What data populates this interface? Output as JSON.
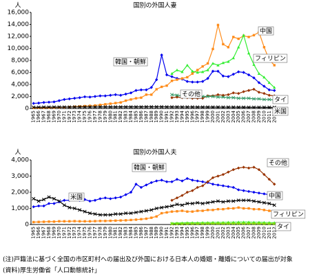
{
  "chart_data": [
    {
      "type": "line",
      "title": "国別の外国人妻",
      "y_unit": "人",
      "categories": [
        "1965",
        "1966",
        "1967",
        "1968",
        "1969",
        "1970",
        "1971",
        "1972",
        "1973",
        "1974",
        "1975",
        "1976",
        "1977",
        "1978",
        "1979",
        "1980",
        "1981",
        "1982",
        "1983",
        "1984",
        "1985",
        "1986",
        "1987",
        "1988",
        "1989",
        "1990",
        "1991",
        "1992",
        "1993",
        "1994",
        "1995",
        "1996",
        "1997",
        "1998",
        "1999",
        "2000",
        "2001",
        "2002",
        "2003",
        "2004",
        "2005",
        "2006",
        "2007",
        "2008",
        "2009",
        "2010",
        "2011",
        "2012"
      ],
      "ylim": [
        0,
        16000
      ],
      "yticks": [
        0,
        {
          "value": 2000,
          "label": "2,000"
        },
        {
          "value": 4000,
          "label": "4,000"
        },
        {
          "value": 6000,
          "label": "6,000"
        },
        {
          "value": 8000,
          "label": "8,000"
        },
        {
          "value": 10000,
          "label": "10,000"
        },
        {
          "value": 12000,
          "label": "12,000"
        },
        {
          "value": 14000,
          "label": "14,000"
        },
        {
          "value": 16000,
          "label": "16,000"
        }
      ],
      "grid": false,
      "series": [
        {
          "name": "韓国・朝鮮",
          "color": "#0000ee",
          "marker": "diamond",
          "values": [
            850,
            900,
            1000,
            1050,
            1100,
            1300,
            1500,
            1600,
            1700,
            1800,
            1950,
            1900,
            2000,
            2100,
            2100,
            2200,
            2300,
            2200,
            2400,
            2600,
            3000,
            3100,
            3100,
            3500,
            4800,
            8900,
            5600,
            5300,
            5000,
            4900,
            4500,
            4400,
            4400,
            4500,
            5000,
            6200,
            6200,
            5400,
            5300,
            5700,
            6100,
            6000,
            5600,
            5100,
            4300,
            3700,
            3100,
            3000
          ]
        },
        {
          "name": "中国",
          "color": "#ff8c1a",
          "marker": "square",
          "values": [
            100,
            110,
            120,
            130,
            150,
            180,
            200,
            250,
            300,
            350,
            400,
            450,
            500,
            600,
            700,
            800,
            900,
            1000,
            1300,
            1500,
            1700,
            1800,
            2300,
            2300,
            3200,
            3600,
            3800,
            4600,
            4800,
            5000,
            5200,
            5800,
            6400,
            7000,
            7500,
            9900,
            13900,
            10700,
            10200,
            11900,
            11600,
            12100,
            11900,
            12200,
            12700,
            10200,
            8100,
            7200
          ]
        },
        {
          "name": "フィリピン",
          "color": "#33ee33",
          "marker": "triangle",
          "values": [
            null,
            null,
            null,
            null,
            null,
            null,
            null,
            null,
            null,
            null,
            null,
            null,
            null,
            null,
            null,
            null,
            null,
            null,
            null,
            null,
            null,
            null,
            null,
            null,
            null,
            null,
            null,
            5800,
            6400,
            6100,
            7200,
            6200,
            6000,
            6100,
            6400,
            7500,
            7200,
            7600,
            7800,
            8400,
            10200,
            12200,
            9200,
            7300,
            5800,
            5200,
            4300,
            3500
          ]
        },
        {
          "name": "タイ",
          "color": "#993300",
          "marker": "diamond",
          "values": [
            null,
            null,
            null,
            null,
            null,
            null,
            null,
            null,
            null,
            null,
            null,
            null,
            null,
            null,
            null,
            null,
            null,
            null,
            null,
            null,
            null,
            null,
            null,
            null,
            null,
            null,
            null,
            1800,
            1900,
            1800,
            1800,
            1700,
            1700,
            1700,
            2100,
            2100,
            2300,
            2200,
            2300,
            2600,
            2500,
            2800,
            3000,
            3200,
            2700,
            2500,
            2200,
            2100
          ]
        },
        {
          "name": "その他",
          "color": "#339966",
          "marker": "x",
          "values": [
            null,
            null,
            null,
            null,
            null,
            null,
            null,
            null,
            null,
            null,
            null,
            null,
            null,
            null,
            null,
            null,
            null,
            null,
            null,
            null,
            null,
            null,
            null,
            null,
            null,
            null,
            null,
            2300,
            2200,
            2100,
            2000,
            2100,
            2000,
            2000,
            2000,
            2000,
            1900,
            1900,
            1800,
            1800,
            1700,
            1700,
            1700,
            1600,
            1600,
            1500,
            1500,
            1400
          ]
        },
        {
          "name": "米国",
          "color": "#000000",
          "marker": "x",
          "values": [
            200,
            200,
            220,
            220,
            230,
            230,
            240,
            240,
            250,
            250,
            250,
            250,
            250,
            260,
            260,
            260,
            260,
            270,
            270,
            270,
            270,
            270,
            280,
            280,
            280,
            280,
            270,
            260,
            260,
            250,
            250,
            250,
            240,
            240,
            240,
            230,
            230,
            220,
            220,
            220,
            210,
            210,
            200,
            200,
            200,
            190,
            190,
            180
          ]
        }
      ]
    },
    {
      "type": "line",
      "title": "国別の外国人夫",
      "y_unit": "人",
      "categories": [
        "1965",
        "1966",
        "1967",
        "1968",
        "1969",
        "1970",
        "1971",
        "1972",
        "1973",
        "1974",
        "1975",
        "1976",
        "1977",
        "1978",
        "1979",
        "1980",
        "1981",
        "1982",
        "1983",
        "1984",
        "1985",
        "1986",
        "1987",
        "1988",
        "1989",
        "1990",
        "1991",
        "1992",
        "1993",
        "1994",
        "1995",
        "1996",
        "1997",
        "1998",
        "1999",
        "2000",
        "2001",
        "2002",
        "2003",
        "2004",
        "2005",
        "2006",
        "2007",
        "2008",
        "2009",
        "2010",
        "2011",
        "2012"
      ],
      "ylim": [
        0,
        4000
      ],
      "yticks": [
        0,
        {
          "value": 1000,
          "label": "1,000"
        },
        {
          "value": 2000,
          "label": "2,000"
        },
        {
          "value": 3000,
          "label": "3,000"
        },
        {
          "value": 4000,
          "label": "4,000"
        }
      ],
      "grid": false,
      "series": [
        {
          "name": "韓国・朝鮮",
          "color": "#0000ee",
          "marker": "diamond",
          "values": [
            1100,
            1150,
            1150,
            1300,
            1300,
            1400,
            1500,
            1500,
            1550,
            1500,
            1550,
            1450,
            1500,
            1600,
            1650,
            1600,
            1650,
            1700,
            1850,
            2000,
            2500,
            2300,
            2450,
            2600,
            2700,
            2750,
            2650,
            2650,
            2800,
            2700,
            2850,
            2750,
            2700,
            2650,
            2600,
            2500,
            2450,
            2400,
            2350,
            2300,
            2150,
            2100,
            2050,
            2000,
            1950,
            1900,
            1850,
            1800
          ]
        },
        {
          "name": "その他",
          "color": "#993300",
          "marker": "diamond",
          "values": [
            null,
            null,
            null,
            null,
            null,
            null,
            null,
            null,
            null,
            null,
            null,
            null,
            null,
            null,
            null,
            null,
            null,
            null,
            null,
            null,
            null,
            null,
            null,
            null,
            null,
            null,
            null,
            1500,
            1650,
            1800,
            2000,
            2100,
            2300,
            2400,
            2650,
            2900,
            3000,
            3100,
            3250,
            3400,
            3500,
            3550,
            3500,
            3550,
            3400,
            3100,
            2800,
            2500
          ]
        },
        {
          "name": "米国",
          "color": "#000000",
          "marker": "x",
          "values": [
            1600,
            1450,
            1550,
            1700,
            1600,
            1450,
            1200,
            1050,
            1000,
            900,
            800,
            700,
            650,
            600,
            600,
            600,
            650,
            650,
            700,
            700,
            750,
            800,
            850,
            900,
            1000,
            1050,
            1100,
            1150,
            1250,
            1200,
            1300,
            1300,
            1350,
            1300,
            1350,
            1400,
            1450,
            1400,
            1450,
            1450,
            1500,
            1500,
            1500,
            1450,
            1400,
            1350,
            1300,
            1200
          ]
        },
        {
          "name": "中国",
          "color": "#ff8c1a",
          "marker": "square",
          "values": [
            150,
            160,
            170,
            180,
            180,
            200,
            200,
            200,
            210,
            200,
            200,
            200,
            210,
            220,
            220,
            230,
            240,
            250,
            260,
            280,
            300,
            330,
            360,
            420,
            500,
            700,
            750,
            800,
            820,
            850,
            800,
            800,
            850,
            850,
            900,
            900,
            950,
            950,
            1000,
            1000,
            1050,
            1000,
            1000,
            950,
            950,
            900,
            850,
            800
          ]
        },
        {
          "name": "フィリピン",
          "color": "#33ee33",
          "marker": "triangle",
          "values": [
            null,
            null,
            null,
            null,
            null,
            null,
            null,
            null,
            null,
            null,
            null,
            null,
            null,
            null,
            null,
            null,
            null,
            null,
            null,
            null,
            null,
            null,
            null,
            null,
            null,
            null,
            null,
            80,
            90,
            100,
            110,
            110,
            110,
            120,
            120,
            130,
            130,
            130,
            140,
            140,
            150,
            150,
            150,
            140,
            140,
            130,
            120,
            110
          ]
        },
        {
          "name": "タイ",
          "color": "#88dd00",
          "marker": "x",
          "values": [
            null,
            null,
            null,
            null,
            null,
            null,
            null,
            null,
            null,
            null,
            null,
            null,
            null,
            null,
            null,
            null,
            null,
            null,
            null,
            null,
            null,
            null,
            null,
            null,
            null,
            null,
            null,
            40,
            40,
            40,
            50,
            50,
            50,
            50,
            60,
            60,
            60,
            60,
            60,
            60,
            60,
            60,
            60,
            60,
            60,
            50,
            50,
            50
          ]
        }
      ]
    }
  ],
  "notes": [
    "(注)戸籍法に基づく全国の市区町村への届出及び外国における日本人の婚姻・離婚についての届出が対象",
    "(資料)厚生労働省「人口動態統計」"
  ]
}
